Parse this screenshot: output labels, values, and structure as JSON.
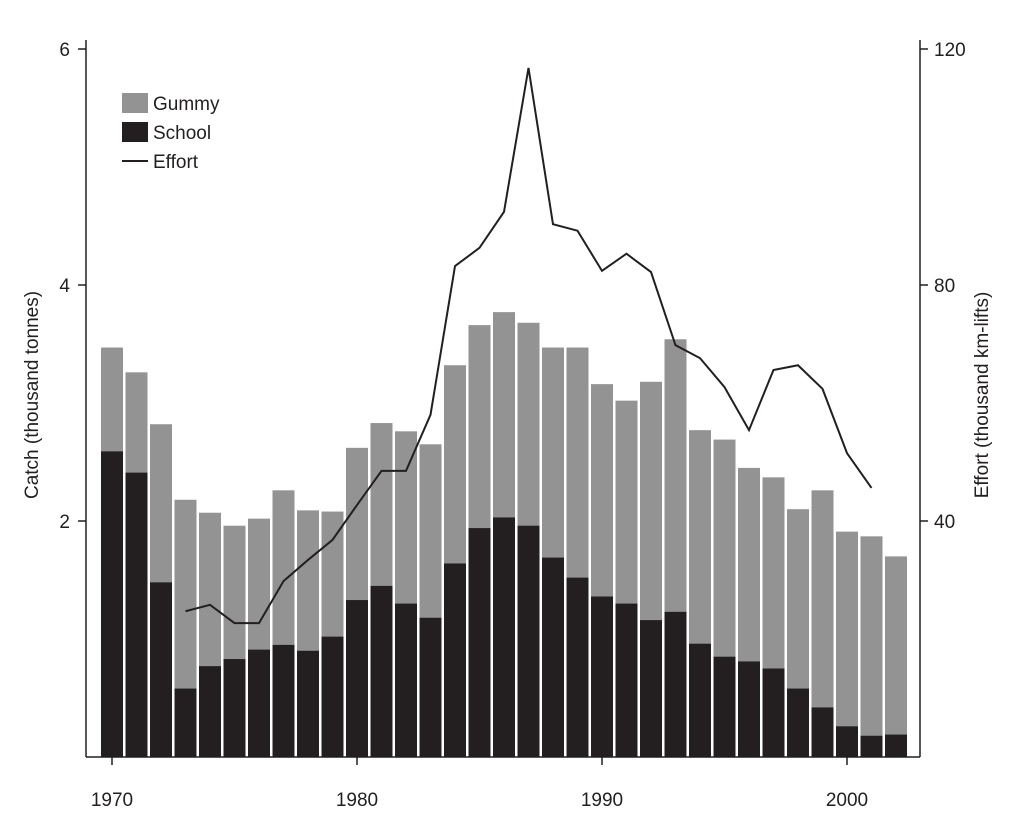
{
  "chart_data": {
    "type": "bar",
    "title": "",
    "xlabel": "",
    "ylabel": "Catch (thousand tonnes)",
    "y2label": "Effort (thousand km-lifts)",
    "ylim": [
      0,
      6
    ],
    "y2lim": [
      0,
      120
    ],
    "xlim": [
      1969.5,
      2003
    ],
    "xticks": [
      "1970",
      "1980",
      "1990",
      "2000"
    ],
    "yticks": [
      "2",
      "4",
      "6"
    ],
    "y2ticks": [
      "40",
      "80",
      "120"
    ],
    "legend_position": "top-left",
    "colors": {
      "gummy": "#939393",
      "school": "#231f20",
      "effort": "#231f20"
    },
    "years": [
      1970,
      1971,
      1972,
      1973,
      1974,
      1975,
      1976,
      1977,
      1978,
      1979,
      1980,
      1981,
      1982,
      1983,
      1984,
      1985,
      1986,
      1987,
      1988,
      1989,
      1990,
      1991,
      1992,
      1993,
      1994,
      1995,
      1996,
      1997,
      1998,
      1999,
      2000,
      2001,
      2002
    ],
    "series": [
      {
        "name": "Gummy",
        "type": "stacked-bar",
        "total_values": [
          3.47,
          3.26,
          2.82,
          2.18,
          2.07,
          1.96,
          2.02,
          2.26,
          2.09,
          2.08,
          2.62,
          2.83,
          2.76,
          2.65,
          3.32,
          3.66,
          3.77,
          3.68,
          3.47,
          3.47,
          3.16,
          3.02,
          3.18,
          3.54,
          2.77,
          2.69,
          2.45,
          2.37,
          2.1,
          2.26,
          1.91,
          1.87,
          1.7
        ]
      },
      {
        "name": "School",
        "type": "bar",
        "values": [
          2.59,
          2.41,
          1.48,
          0.58,
          0.77,
          0.83,
          0.91,
          0.95,
          0.9,
          1.02,
          1.33,
          1.45,
          1.3,
          1.18,
          1.64,
          1.94,
          2.03,
          1.96,
          1.69,
          1.52,
          1.36,
          1.3,
          1.16,
          1.23,
          0.96,
          0.85,
          0.81,
          0.75,
          0.58,
          0.42,
          0.26,
          0.18,
          0.19
        ]
      },
      {
        "name": "Effort",
        "type": "line",
        "axis": "right",
        "x": [
          1973,
          1974,
          1975,
          1976,
          1977,
          1978,
          1979,
          1980,
          1981,
          1982,
          1983,
          1984,
          1985,
          1986,
          1987,
          1988,
          1989,
          1990,
          1991,
          1992,
          1993,
          1994,
          1995,
          1996,
          1997,
          1998,
          1999,
          2000,
          2001
        ],
        "values": [
          24.7,
          25.8,
          22.7,
          22.7,
          29.8,
          33.4,
          36.8,
          42.7,
          48.5,
          48.5,
          58,
          83.2,
          86.3,
          92.4,
          116.8,
          90.3,
          89.2,
          82.4,
          85.3,
          82.2,
          69.8,
          67.6,
          62.7,
          55.4,
          65.6,
          66.4,
          62.4,
          51.5,
          45.6
        ]
      }
    ]
  }
}
